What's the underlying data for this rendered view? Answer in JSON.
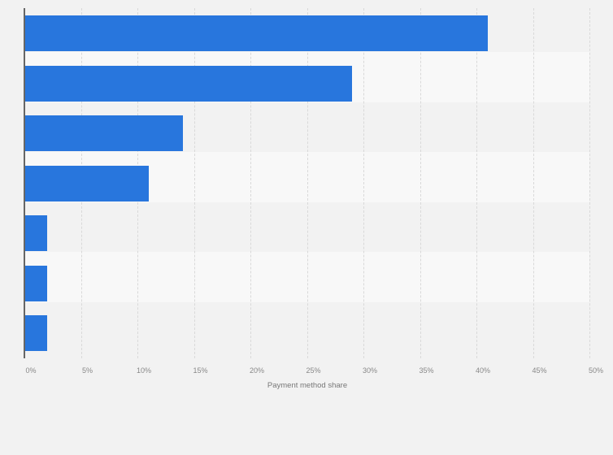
{
  "chart_data": {
    "type": "bar",
    "orientation": "horizontal",
    "title": "",
    "xlabel": "Payment method share",
    "ylabel": "",
    "categories": [
      "",
      "",
      "",
      "",
      "",
      "",
      ""
    ],
    "values": [
      41,
      29,
      14,
      11,
      2,
      2,
      2
    ],
    "unit": "%",
    "xlim": [
      0,
      50
    ],
    "xticks": [
      "0%",
      "5%",
      "10%",
      "15%",
      "20%",
      "25%",
      "30%",
      "35%",
      "40%",
      "45%",
      "50%"
    ],
    "grid": true,
    "legend": null,
    "bar_color": "#2876dd"
  }
}
